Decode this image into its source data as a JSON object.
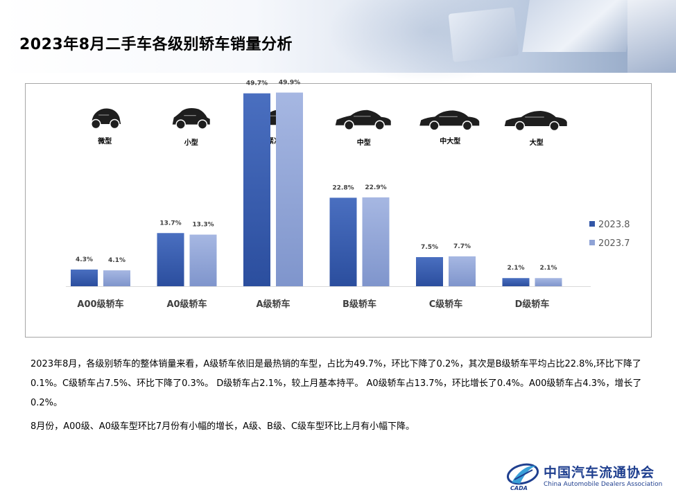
{
  "page": {
    "title": "2023年8月二手车各级别轿车销量分析"
  },
  "car_types": [
    {
      "label": "微型",
      "icon": "micro-car-icon"
    },
    {
      "label": "小型",
      "icon": "hatchback-car-icon"
    },
    {
      "label": "紧凑级",
      "icon": "compact-sedan-icon"
    },
    {
      "label": "中型",
      "icon": "midsize-sedan-icon"
    },
    {
      "label": "中大型",
      "icon": "large-sedan-icon"
    },
    {
      "label": "大型",
      "icon": "luxury-sedan-icon"
    }
  ],
  "chart_data": {
    "type": "bar",
    "categories": [
      "A00级轿车",
      "A0级轿车",
      "A级轿车",
      "B级轿车",
      "C级轿车",
      "D级轿车"
    ],
    "series": [
      {
        "name": "2023.8",
        "values": [
          4.3,
          13.7,
          49.7,
          22.8,
          7.5,
          2.1
        ],
        "labels": [
          "4.3%",
          "13.7%",
          "49.7%",
          "22.8%",
          "7.5%",
          "2.1%"
        ],
        "color": "#3357a7"
      },
      {
        "name": "2023.7",
        "values": [
          4.1,
          13.3,
          49.9,
          22.9,
          7.7,
          2.1
        ],
        "labels": [
          "4.1%",
          "13.3%",
          "49.9%",
          "22.9%",
          "7.7%",
          "2.1%"
        ],
        "color": "#8fa3d6"
      }
    ],
    "ylim": [
      0,
      50
    ],
    "grid": false,
    "legend": "right"
  },
  "description": {
    "paragraph1": "2023年8月，各级别轿车的整体销量来看，A级轿车依旧是最热销的车型，占比为49.7%，环比下降了0.2%，其次是B级轿车平均占比22.8%,环比下降了0.1%。C级轿车占7.5%、环比下降了0.3%。 D级轿车占2.1%，较上月基本持平。 A0级轿车占13.7%，环比增长了0.4%。A00级轿车占4.3%，增长了0.2%。",
    "paragraph2": "8月份，A00级、A0级车型环比7月份有小幅的增长，A级、B级、C级车型环比上月有小幅下降。"
  },
  "logo": {
    "name_cn": "中国汽车流通协会",
    "name_en": "China Automobile Dealers Association",
    "abbr": "CADA"
  }
}
